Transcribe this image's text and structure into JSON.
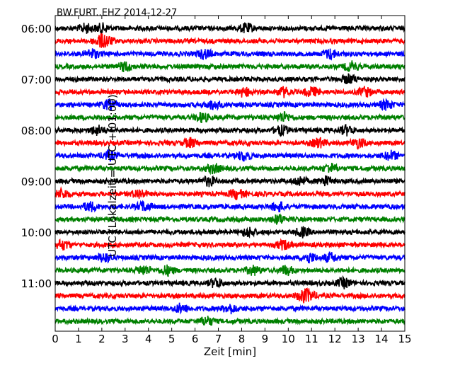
{
  "chart_data": {
    "type": "line",
    "title": "BW.FURT..EHZ 2014-12-27",
    "xlabel": "Zeit  [min]",
    "ylabel": "UTC (Lokalzeit = UTC + 01:00)",
    "xlim": [
      0,
      15
    ],
    "xticks": [
      "0",
      "1",
      "2",
      "3",
      "4",
      "5",
      "6",
      "7",
      "8",
      "9",
      "10",
      "11",
      "12",
      "13",
      "14",
      "15"
    ],
    "yticks": [
      "06:00",
      "07:00",
      "08:00",
      "09:00",
      "10:00",
      "11:00"
    ],
    "trace_interval_min": 15,
    "trace_count": 24,
    "trace_colors": [
      "#000000",
      "#ff0000",
      "#0000ff",
      "#008000"
    ],
    "grid": false,
    "series": [
      {
        "start": "06:00",
        "color": "#000000",
        "events_min": [
          1.3,
          2.0,
          8.2
        ]
      },
      {
        "start": "06:15",
        "color": "#ff0000",
        "events_min": [
          1.9,
          2.2
        ]
      },
      {
        "start": "06:30",
        "color": "#0000ff",
        "events_min": [
          1.6,
          6.4,
          11.8
        ]
      },
      {
        "start": "06:45",
        "color": "#008000",
        "events_min": [
          3.0,
          12.7
        ]
      },
      {
        "start": "07:00",
        "color": "#000000",
        "events_min": [
          12.6
        ]
      },
      {
        "start": "07:15",
        "color": "#ff0000",
        "events_min": [
          8.1,
          9.8,
          11.0,
          13.3
        ]
      },
      {
        "start": "07:30",
        "color": "#0000ff",
        "events_min": [
          2.3,
          6.8,
          14.2
        ]
      },
      {
        "start": "07:45",
        "color": "#008000",
        "events_min": [
          6.3,
          9.8
        ]
      },
      {
        "start": "08:00",
        "color": "#000000",
        "events_min": [
          1.8,
          9.7,
          12.5
        ]
      },
      {
        "start": "08:15",
        "color": "#ff0000",
        "events_min": [
          5.8,
          11.3,
          13.0
        ]
      },
      {
        "start": "08:30",
        "color": "#0000ff",
        "events_min": [
          2.3,
          8.1,
          14.4
        ]
      },
      {
        "start": "08:45",
        "color": "#008000",
        "events_min": [
          6.8,
          11.8
        ]
      },
      {
        "start": "09:00",
        "color": "#000000",
        "events_min": [
          6.6,
          10.5,
          11.6
        ]
      },
      {
        "start": "09:15",
        "color": "#ff0000",
        "events_min": [
          0.3,
          3.6,
          7.8
        ]
      },
      {
        "start": "09:30",
        "color": "#0000ff",
        "events_min": [
          1.5,
          3.8,
          9.6
        ]
      },
      {
        "start": "09:45",
        "color": "#008000",
        "events_min": [
          9.6
        ]
      },
      {
        "start": "10:00",
        "color": "#000000",
        "events_min": [
          8.3,
          10.6
        ]
      },
      {
        "start": "10:15",
        "color": "#ff0000",
        "events_min": [
          0.3,
          9.8
        ]
      },
      {
        "start": "10:30",
        "color": "#0000ff",
        "events_min": [
          2.1,
          10.9,
          11.8
        ]
      },
      {
        "start": "10:45",
        "color": "#008000",
        "events_min": [
          3.8,
          4.8,
          8.5,
          9.9
        ]
      },
      {
        "start": "11:00",
        "color": "#000000",
        "events_min": [
          6.9,
          12.4
        ]
      },
      {
        "start": "11:15",
        "color": "#ff0000",
        "events_min": [
          10.6,
          10.9
        ]
      },
      {
        "start": "11:30",
        "color": "#0000ff",
        "events_min": [
          5.4,
          7.5
        ]
      },
      {
        "start": "11:45",
        "color": "#008000",
        "events_min": [
          6.5
        ]
      }
    ]
  }
}
